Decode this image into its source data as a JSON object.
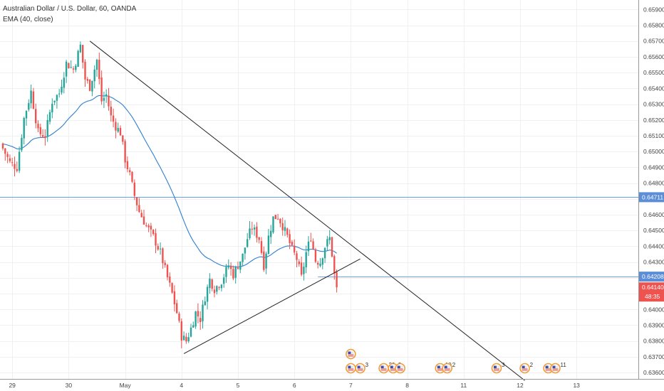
{
  "header": {
    "title": "Australian Dollar / U.S. Dollar, 60, OANDA",
    "indicator": "EMA (40, close)"
  },
  "colors": {
    "up": "#26a69a",
    "down": "#ef5350",
    "ema": "#2f7fd0",
    "hline": "#6aa0e6",
    "trendline": "#222222",
    "last_price_badge": "#ef5350",
    "hline_badge": "#5b8ed6"
  },
  "chart_data": {
    "type": "candlestick",
    "symbol": "AUDUSD",
    "timeframe": "60",
    "ylim": [
      0.6356,
      0.6596
    ],
    "y_ticks": [
      "0.65900",
      "0.65800",
      "0.65700",
      "0.65600",
      "0.65500",
      "0.65400",
      "0.65300",
      "0.65200",
      "0.65100",
      "0.65000",
      "0.64900",
      "0.64800",
      "0.64700",
      "0.64600",
      "0.64500",
      "0.64400",
      "0.64300",
      "0.64200",
      "0.64100",
      "0.64000",
      "0.63900",
      "0.63800",
      "0.63700",
      "0.63600"
    ],
    "x_ticks": [
      "29",
      "30",
      "May",
      "4",
      "5",
      "6",
      "7",
      "8",
      "11",
      "12",
      "13"
    ],
    "x_tick_index": [
      4,
      28,
      52,
      76,
      100,
      124,
      148,
      172,
      196,
      220,
      244
    ],
    "anchors": [
      [
        0,
        0.6502
      ],
      [
        3,
        0.6493
      ],
      [
        6,
        0.649
      ],
      [
        9,
        0.6521
      ],
      [
        12,
        0.6538
      ],
      [
        15,
        0.6512
      ],
      [
        18,
        0.651
      ],
      [
        21,
        0.6532
      ],
      [
        24,
        0.6537
      ],
      [
        27,
        0.6556
      ],
      [
        30,
        0.6552
      ],
      [
        33,
        0.6567
      ],
      [
        35,
        0.6546
      ],
      [
        37,
        0.6541
      ],
      [
        40,
        0.6558
      ],
      [
        42,
        0.6532
      ],
      [
        44,
        0.6536
      ],
      [
        46,
        0.6522
      ],
      [
        48,
        0.6516
      ],
      [
        50,
        0.6512
      ],
      [
        52,
        0.6495
      ],
      [
        54,
        0.6485
      ],
      [
        56,
        0.6472
      ],
      [
        58,
        0.6462
      ],
      [
        61,
        0.6453
      ],
      [
        64,
        0.6446
      ],
      [
        67,
        0.6436
      ],
      [
        70,
        0.642
      ],
      [
        72,
        0.641
      ],
      [
        74,
        0.6398
      ],
      [
        76,
        0.6383
      ],
      [
        78,
        0.638
      ],
      [
        80,
        0.6388
      ],
      [
        82,
        0.6398
      ],
      [
        84,
        0.6394
      ],
      [
        86,
        0.6408
      ],
      [
        88,
        0.6419
      ],
      [
        90,
        0.6413
      ],
      [
        93,
        0.6418
      ],
      [
        96,
        0.6428
      ],
      [
        98,
        0.6422
      ],
      [
        100,
        0.6428
      ],
      [
        102,
        0.6434
      ],
      [
        104,
        0.6445
      ],
      [
        106,
        0.6452
      ],
      [
        109,
        0.6445
      ],
      [
        111,
        0.6428
      ],
      [
        113,
        0.6446
      ],
      [
        115,
        0.6458
      ],
      [
        117,
        0.6459
      ],
      [
        119,
        0.6453
      ],
      [
        121,
        0.6446
      ],
      [
        123,
        0.6438
      ],
      [
        125,
        0.6432
      ],
      [
        127,
        0.642
      ],
      [
        129,
        0.6436
      ],
      [
        131,
        0.6446
      ],
      [
        133,
        0.6431
      ],
      [
        135,
        0.643
      ],
      [
        137,
        0.644
      ],
      [
        139,
        0.6445
      ],
      [
        140,
        0.6435
      ],
      [
        141,
        0.6422
      ],
      [
        142,
        0.6414
      ]
    ],
    "last_price": 0.6414,
    "last_price_label": "0.64140",
    "countdown": "48:35",
    "horizontal_levels": [
      {
        "price": 0.64711,
        "label": "0.64711"
      },
      {
        "price": 0.64208,
        "label": "0.64208"
      }
    ],
    "trendlines": [
      {
        "from": [
          37,
          0.657
        ],
        "to": [
          222,
          0.6355
        ]
      },
      {
        "from": [
          77,
          0.6372
        ],
        "to": [
          152,
          0.6432
        ]
      }
    ],
    "ema_period": 40,
    "events": [
      {
        "i": 148,
        "count": "",
        "stack": 2
      },
      {
        "i": 152,
        "count": "3",
        "stack": 1
      },
      {
        "i": 162,
        "count": "29",
        "stack": 1
      },
      {
        "i": 166,
        "count": "2",
        "stack": 1
      },
      {
        "i": 169,
        "count": "",
        "stack": 1
      },
      {
        "i": 186,
        "count": "10",
        "stack": 1
      },
      {
        "i": 189,
        "count": "2",
        "stack": 1
      },
      {
        "i": 210,
        "count": "3",
        "stack": 1
      },
      {
        "i": 222,
        "count": "2",
        "stack": 1
      },
      {
        "i": 232,
        "count": "",
        "stack": 1
      },
      {
        "i": 235,
        "count": "11",
        "stack": 1
      }
    ]
  }
}
